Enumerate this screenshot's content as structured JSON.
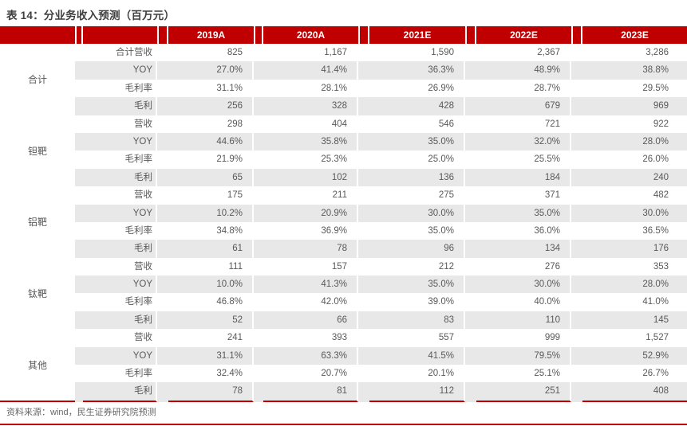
{
  "page": {
    "title": "表 14：分业务收入预测（百万元）",
    "source": "资料来源：wind，民生证券研究院预测"
  },
  "colors": {
    "header_bg": "#C00000",
    "header_text": "#FFFFFF",
    "stripe": "#E8E8E8",
    "body_text": "#595959",
    "accent_rule": "#C00000"
  },
  "table": {
    "columns": [
      "2019A",
      "2020A",
      "2021E",
      "2022E",
      "2023E"
    ],
    "groups": [
      {
        "label": "合计",
        "rows": [
          {
            "metric": "合计营收",
            "values": [
              "825",
              "1,167",
              "1,590",
              "2,367",
              "3,286"
            ]
          },
          {
            "metric": "YOY",
            "values": [
              "27.0%",
              "41.4%",
              "36.3%",
              "48.9%",
              "38.8%"
            ]
          },
          {
            "metric": "毛利率",
            "values": [
              "31.1%",
              "28.1%",
              "26.9%",
              "28.7%",
              "29.5%"
            ]
          },
          {
            "metric": "毛利",
            "values": [
              "256",
              "328",
              "428",
              "679",
              "969"
            ]
          }
        ]
      },
      {
        "label": "钽靶",
        "rows": [
          {
            "metric": "营收",
            "values": [
              "298",
              "404",
              "546",
              "721",
              "922"
            ]
          },
          {
            "metric": "YOY",
            "values": [
              "44.6%",
              "35.8%",
              "35.0%",
              "32.0%",
              "28.0%"
            ]
          },
          {
            "metric": "毛利率",
            "values": [
              "21.9%",
              "25.3%",
              "25.0%",
              "25.5%",
              "26.0%"
            ]
          },
          {
            "metric": "毛利",
            "values": [
              "65",
              "102",
              "136",
              "184",
              "240"
            ]
          }
        ]
      },
      {
        "label": "铝靶",
        "rows": [
          {
            "metric": "营收",
            "values": [
              "175",
              "211",
              "275",
              "371",
              "482"
            ]
          },
          {
            "metric": "YOY",
            "values": [
              "10.2%",
              "20.9%",
              "30.0%",
              "35.0%",
              "30.0%"
            ]
          },
          {
            "metric": "毛利率",
            "values": [
              "34.8%",
              "36.9%",
              "35.0%",
              "36.0%",
              "36.5%"
            ]
          },
          {
            "metric": "毛利",
            "values": [
              "61",
              "78",
              "96",
              "134",
              "176"
            ]
          }
        ]
      },
      {
        "label": "钛靶",
        "rows": [
          {
            "metric": "营收",
            "values": [
              "111",
              "157",
              "212",
              "276",
              "353"
            ]
          },
          {
            "metric": "YOY",
            "values": [
              "10.0%",
              "41.3%",
              "35.0%",
              "30.0%",
              "28.0%"
            ]
          },
          {
            "metric": "毛利率",
            "values": [
              "46.8%",
              "42.0%",
              "39.0%",
              "40.0%",
              "41.0%"
            ]
          },
          {
            "metric": "毛利",
            "values": [
              "52",
              "66",
              "83",
              "110",
              "145"
            ]
          }
        ]
      },
      {
        "label": "其他",
        "rows": [
          {
            "metric": "营收",
            "values": [
              "241",
              "393",
              "557",
              "999",
              "1,527"
            ]
          },
          {
            "metric": "YOY",
            "values": [
              "31.1%",
              "63.3%",
              "41.5%",
              "79.5%",
              "52.9%"
            ]
          },
          {
            "metric": "毛利率",
            "values": [
              "32.4%",
              "20.7%",
              "20.1%",
              "25.1%",
              "26.7%"
            ]
          },
          {
            "metric": "毛利",
            "values": [
              "78",
              "81",
              "112",
              "251",
              "408"
            ]
          }
        ]
      }
    ]
  }
}
